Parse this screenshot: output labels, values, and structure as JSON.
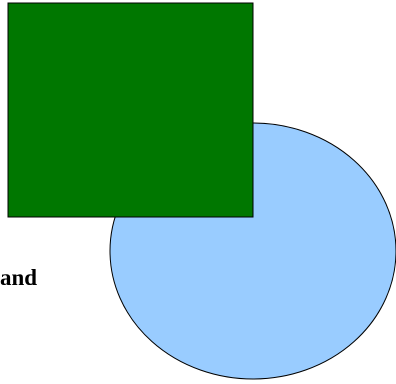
{
  "diagram": {
    "fragment_text": "and",
    "shapes": {
      "ellipse": {
        "shape": "ellipse",
        "fill": "#99ccff",
        "stroke": "#000000"
      },
      "rectangle": {
        "shape": "rectangle",
        "fill": "#007700",
        "stroke": "#000000"
      }
    },
    "text_color": "#000000"
  }
}
